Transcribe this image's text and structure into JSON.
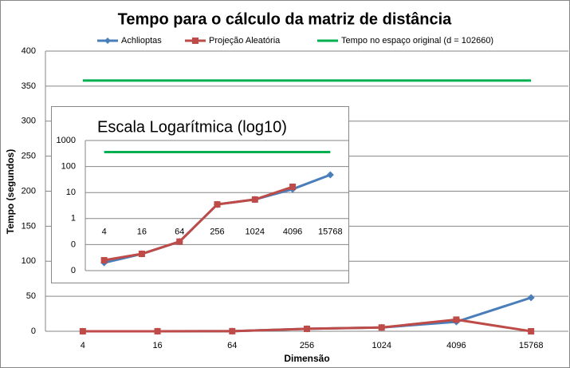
{
  "chart_data": [
    {
      "type": "line",
      "title": "Tempo para o cálculo da matriz de distância",
      "x_label": "Dimensão",
      "y_label": "Tempo (segundos)",
      "categories": [
        "4",
        "16",
        "64",
        "256",
        "1024",
        "4096",
        "15768"
      ],
      "series": [
        {
          "name": "Achlioptas",
          "color": "#4a7ebb",
          "marker": "diamond",
          "values": [
            0.02,
            0.044,
            0.13,
            3.5,
            5.4,
            13.5,
            48
          ]
        },
        {
          "name": "Projeção Aleatória",
          "color": "#be4b48",
          "marker": "square",
          "values": [
            0.025,
            0.044,
            0.13,
            3.5,
            5.4,
            16.6,
            0
          ]
        },
        {
          "name": "Tempo no espaço original (d = 102660)",
          "color": "#00b050",
          "marker": "none",
          "values": [
            358,
            358,
            358,
            358,
            358,
            358,
            358
          ]
        }
      ],
      "ylim": [
        0,
        400
      ],
      "yticks": [
        0,
        50,
        100,
        150,
        200,
        250,
        300,
        350,
        400
      ],
      "grid": true,
      "legend": "top"
    },
    {
      "type": "line",
      "title": "Escala Logarítmica (log10)",
      "log_scale": true,
      "categories": [
        "4",
        "16",
        "64",
        "256",
        "1024",
        "4096",
        "15768"
      ],
      "series": [
        {
          "name": "Achlioptas",
          "color": "#4a7ebb",
          "marker": "diamond",
          "values": [
            0.02,
            0.044,
            0.13,
            3.5,
            5.4,
            13.5,
            48
          ]
        },
        {
          "name": "Projeção Aleatória",
          "color": "#be4b48",
          "marker": "square",
          "values": [
            0.025,
            0.044,
            0.13,
            3.5,
            5.4,
            16.6,
            null
          ]
        },
        {
          "name": "Tempo no espaço original (d = 102660)",
          "color": "#00b050",
          "marker": "none",
          "values": [
            358,
            358,
            358,
            358,
            358,
            358,
            358
          ]
        }
      ],
      "ylim": [
        0.01,
        1000
      ],
      "yticks": [
        {
          "value": 0.01,
          "label": "0"
        },
        {
          "value": 0.1,
          "label": "0"
        },
        1,
        10,
        100,
        1000
      ],
      "grid": true
    }
  ]
}
